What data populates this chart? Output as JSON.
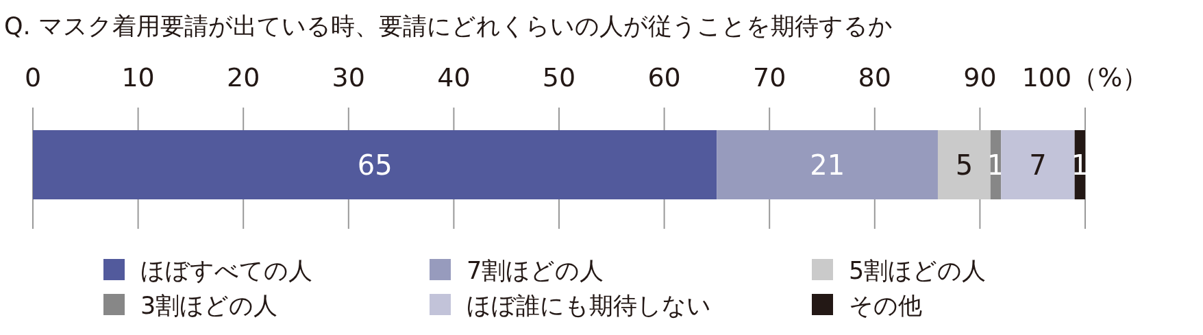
{
  "chart_data": {
    "type": "bar",
    "orientation": "horizontal",
    "stacked": true,
    "title": "Q.  マスク着用要請が出ている時、要請にどれくらいの人が従うことを期待するか",
    "categories": [
      null
    ],
    "series": [
      {
        "name": "ほぼすべての人",
        "color": "#525a9c",
        "values": [
          65
        ]
      },
      {
        "name": "7割ほどの人",
        "color": "#979bbd",
        "values": [
          21
        ]
      },
      {
        "name": "5割ほどの人",
        "color": "#cacaca",
        "values": [
          5
        ]
      },
      {
        "name": "3割ほどの人",
        "color": "#878787",
        "values": [
          1
        ]
      },
      {
        "name": "ほぼ誰にも期待しない",
        "color": "#c2c3d9",
        "values": [
          7
        ]
      },
      {
        "name": "その他",
        "color": "#231815",
        "values": [
          1
        ]
      }
    ],
    "xlim": [
      0,
      100
    ],
    "xticks": [
      0,
      10,
      20,
      30,
      40,
      50,
      60,
      70,
      80,
      90,
      {
        "value": 100,
        "label": "100（%）"
      }
    ],
    "grid": "x",
    "data_labels": true,
    "legend": "bottom"
  }
}
